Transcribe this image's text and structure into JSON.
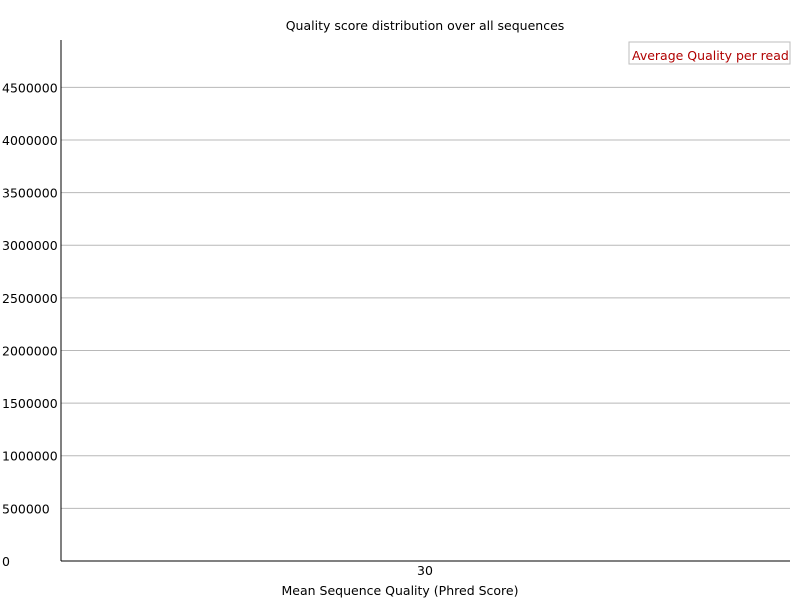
{
  "chart_data": {
    "type": "line",
    "title": "Quality score distribution over all sequences",
    "xlabel": "Mean Sequence Quality (Phred Score)",
    "ylabel": "",
    "x_ticks": [
      "30"
    ],
    "y_ticks": [
      "0",
      "500000",
      "1000000",
      "1500000",
      "2000000",
      "2500000",
      "3000000",
      "3500000",
      "4000000",
      "4500000"
    ],
    "ylim": [
      0,
      4950000
    ],
    "grid": true,
    "legend_position": "top-right",
    "series": [
      {
        "name": "Average Quality per read",
        "color": "#b00000",
        "x": [],
        "y": []
      }
    ]
  }
}
